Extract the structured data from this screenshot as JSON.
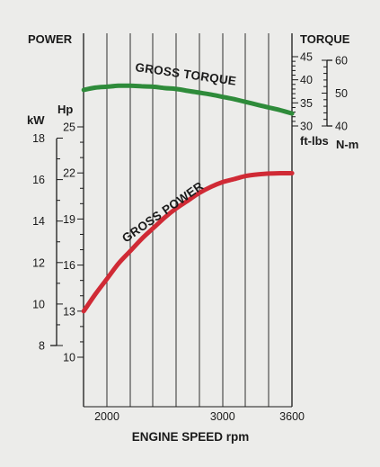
{
  "chart_data": {
    "type": "line",
    "left_title": "POWER",
    "right_title": "TORQUE",
    "xlabel": "ENGINE SPEED rpm",
    "x_ticks": [
      2000,
      3000,
      3600
    ],
    "xlim": [
      1800,
      3600
    ],
    "hp_axis": {
      "unit": "Hp",
      "ticks": [
        10,
        13,
        16,
        19,
        22,
        25
      ],
      "range": [
        10,
        25
      ]
    },
    "kw_axis": {
      "unit": "kW",
      "ticks": [
        8,
        10,
        12,
        14,
        16,
        18
      ],
      "range": [
        8,
        18
      ]
    },
    "ftlbs_axis": {
      "unit": "ft-lbs",
      "ticks": [
        30,
        35,
        40,
        45
      ],
      "range": [
        30,
        45
      ]
    },
    "nm_axis": {
      "unit": "N-m",
      "ticks": [
        40,
        50,
        60
      ],
      "range": [
        40,
        60
      ]
    },
    "series": [
      {
        "name": "GROSS TORQUE",
        "color": "#2e8b3a",
        "axis": "ft-lbs",
        "x": [
          1800,
          1900,
          2000,
          2100,
          2200,
          2300,
          2400,
          2500,
          2600,
          2700,
          2800,
          2900,
          3000,
          3100,
          3200,
          3300,
          3400,
          3500,
          3600
        ],
        "y": [
          37.8,
          38.3,
          38.5,
          38.7,
          38.7,
          38.6,
          38.5,
          38.2,
          38.0,
          37.6,
          37.2,
          36.8,
          36.3,
          35.8,
          35.2,
          34.6,
          34.0,
          33.4,
          32.7
        ]
      },
      {
        "name": "GROSS POWER",
        "color": "#d02a35",
        "axis": "Hp",
        "x": [
          1800,
          1900,
          2000,
          2100,
          2200,
          2300,
          2400,
          2500,
          2600,
          2700,
          2800,
          2900,
          3000,
          3100,
          3200,
          3300,
          3400,
          3500,
          3600
        ],
        "y": [
          13.0,
          14.1,
          15.1,
          16.1,
          16.9,
          17.7,
          18.4,
          19.1,
          19.7,
          20.2,
          20.7,
          21.1,
          21.4,
          21.6,
          21.8,
          21.9,
          21.96,
          21.98,
          21.98
        ]
      }
    ]
  }
}
